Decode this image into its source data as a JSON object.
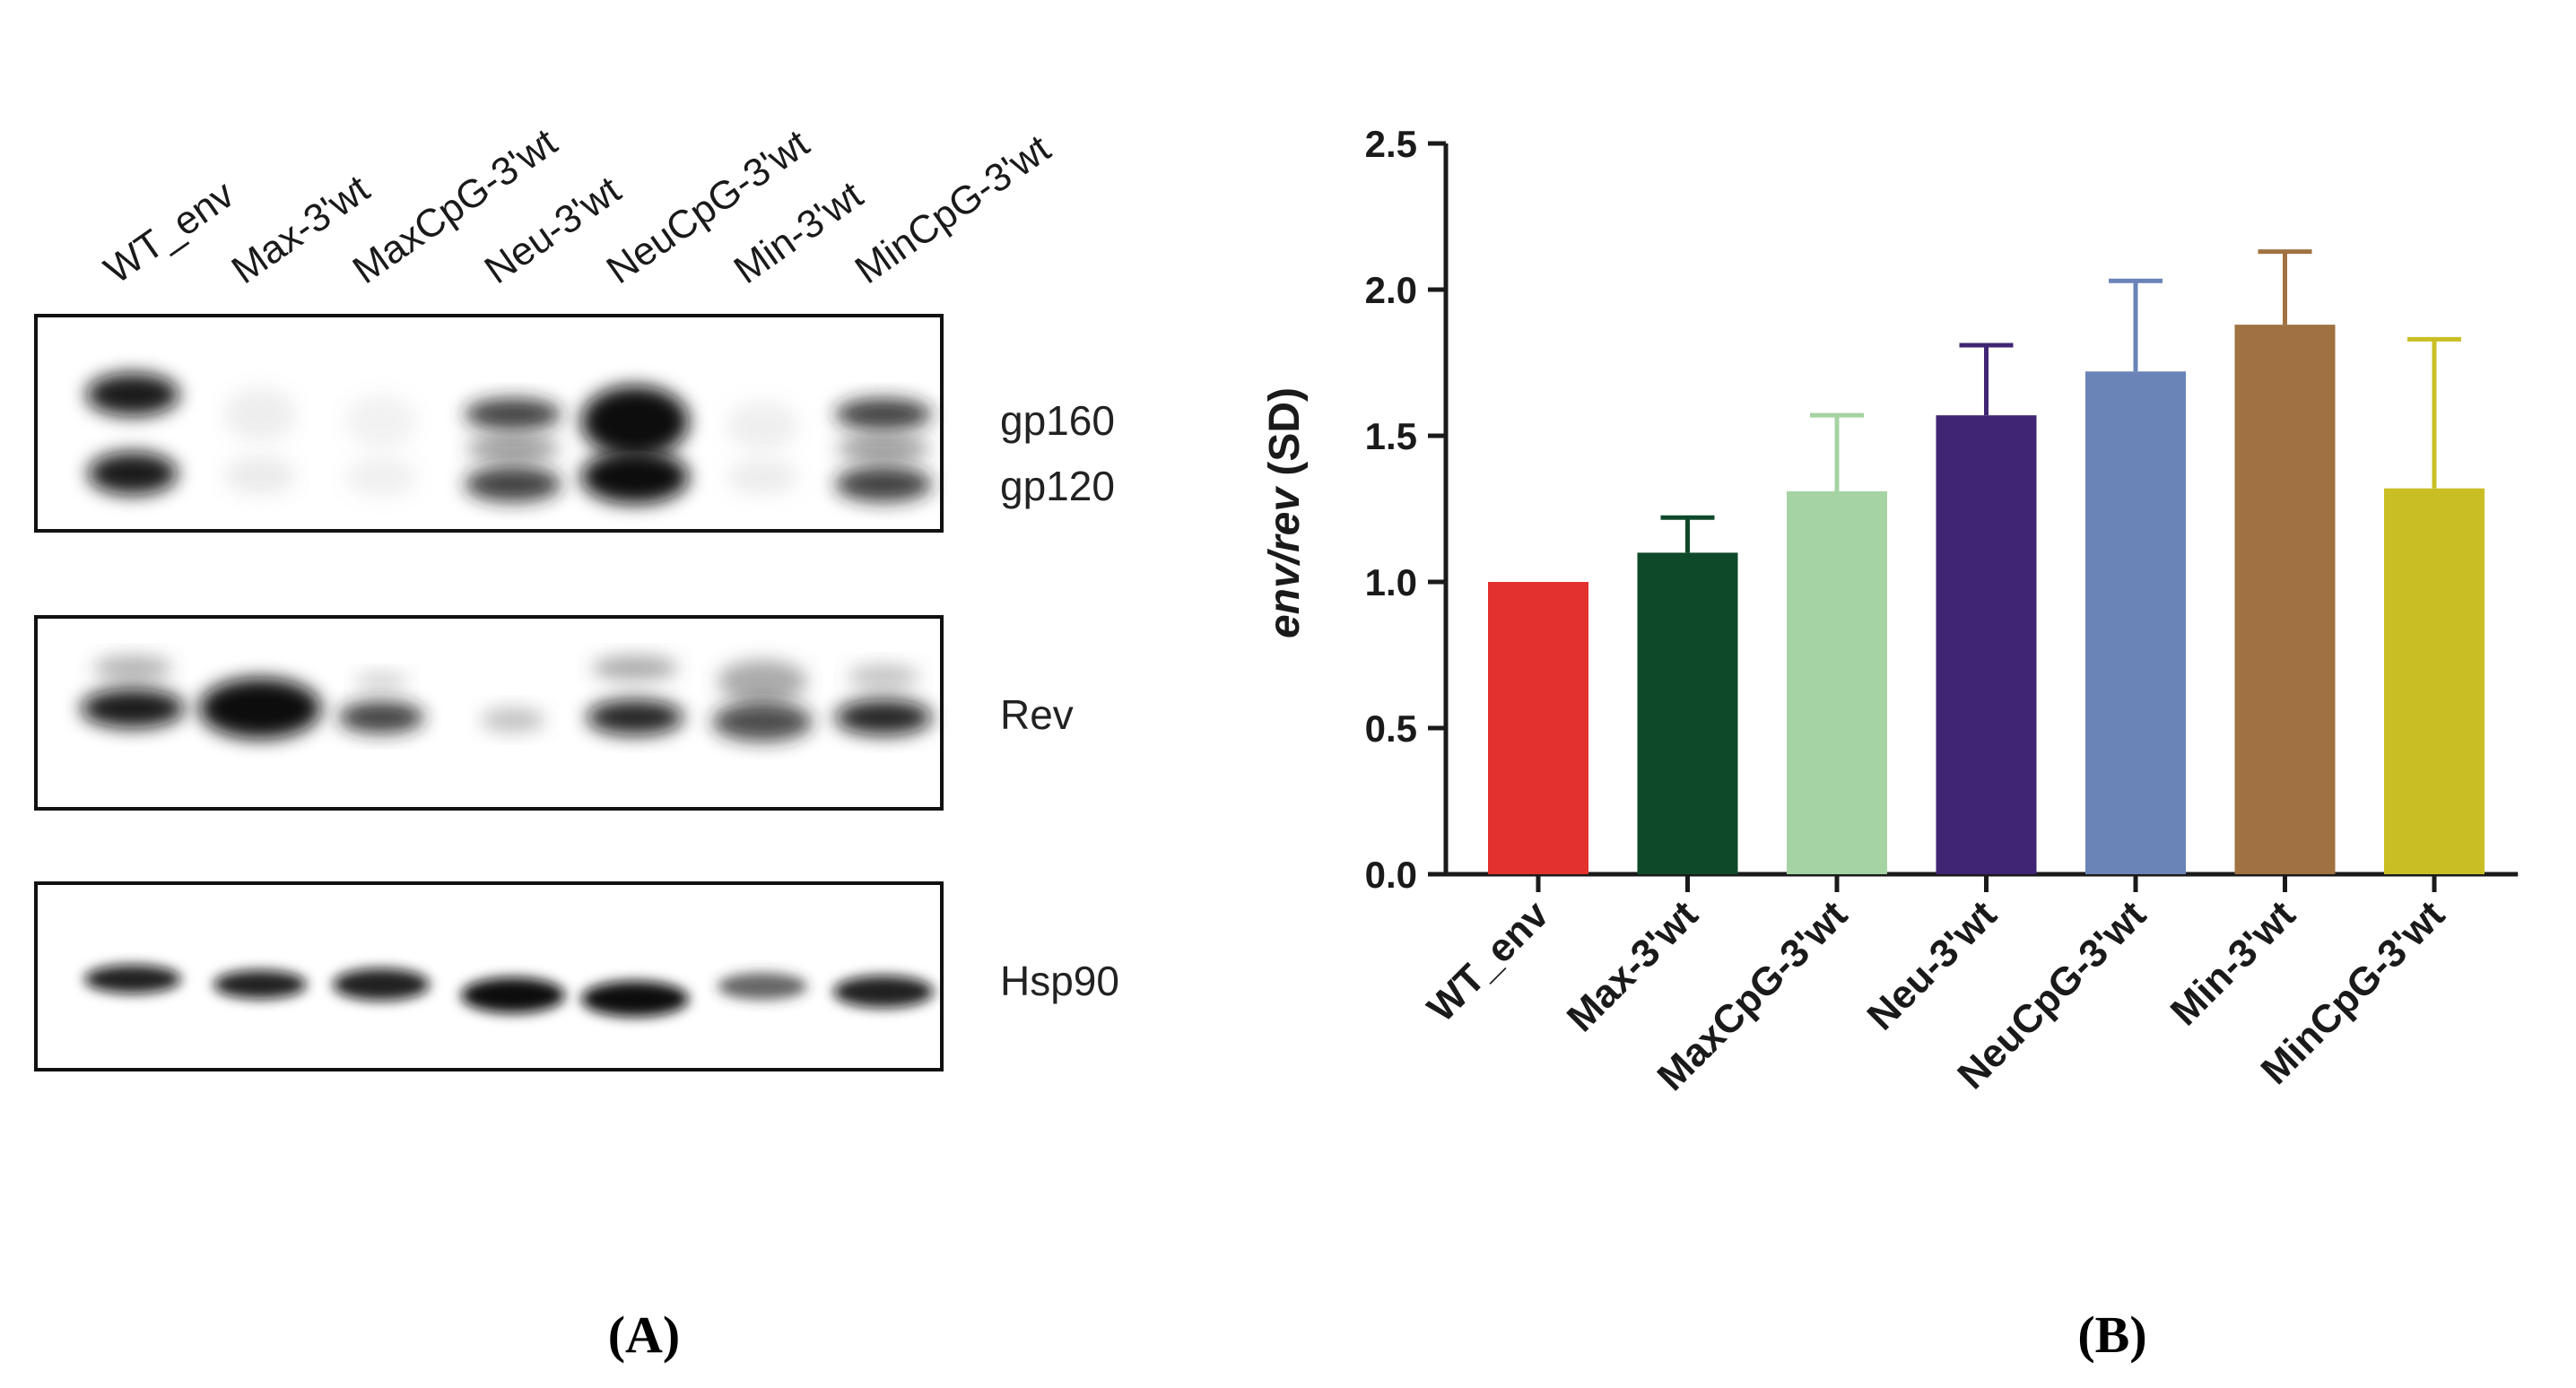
{
  "panel_a": {
    "label": "(A)",
    "lanes": [
      "WT_env",
      "Max-3'wt",
      "MaxCpG-3'wt",
      "Neu-3'wt",
      "NeuCpG-3'wt",
      "Min-3'wt",
      "MinCpG-3'wt"
    ],
    "blot_markers": {
      "gp160": "gp160",
      "gp120": "gp120",
      "rev": "Rev",
      "hsp90": "Hsp90"
    }
  },
  "panel_b": {
    "label": "(B)"
  },
  "chart_data": {
    "type": "bar",
    "categories": [
      "WT_env",
      "Max-3'wt",
      "MaxCpG-3'wt",
      "Neu-3'wt",
      "NeuCpG-3'wt",
      "Min-3'wt",
      "MinCpG-3'wt"
    ],
    "values": [
      1.0,
      1.1,
      1.31,
      1.57,
      1.72,
      1.88,
      1.32
    ],
    "errors": [
      0.0,
      0.12,
      0.26,
      0.24,
      0.31,
      0.25,
      0.51
    ],
    "colors": [
      "#e3312d",
      "#0e4a2a",
      "#a5d3a3",
      "#3f2573",
      "#6a84b8",
      "#a07242",
      "#c9bf24"
    ],
    "ylabel_italic": "env/rev",
    "ylabel_rest": " (SD)",
    "ylim": [
      0,
      2.5
    ],
    "yticks": [
      "0.0",
      "0.5",
      "1.0",
      "1.5",
      "2.0",
      "2.5"
    ],
    "ytick_values": [
      0,
      0.5,
      1.0,
      1.5,
      2.0,
      2.5
    ],
    "grid": false
  }
}
